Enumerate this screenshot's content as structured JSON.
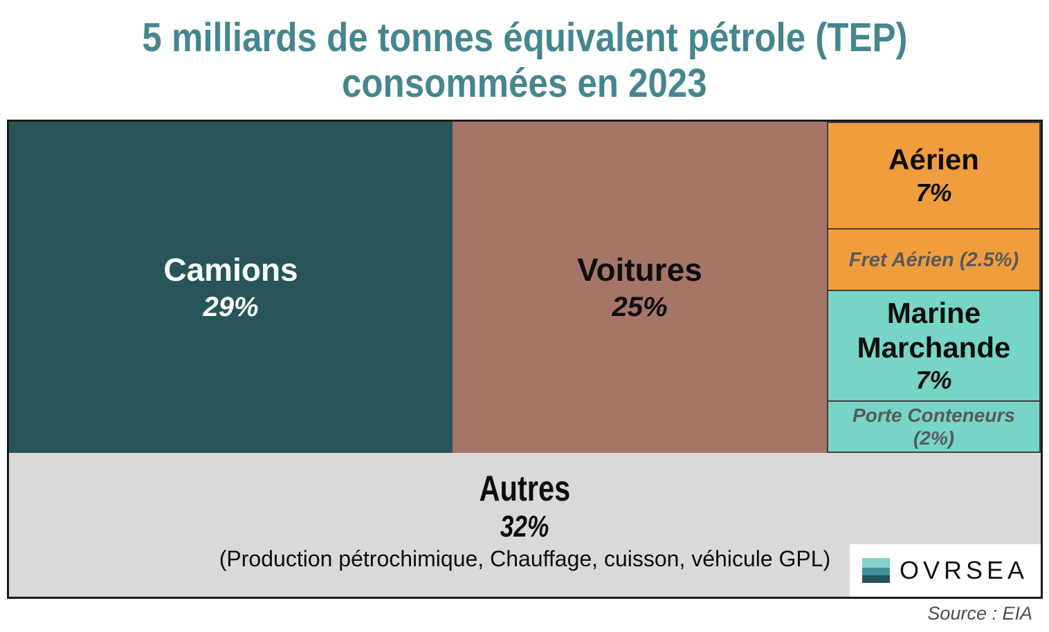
{
  "title": {
    "line1": "5 milliards de tonnes équivalent pétrole (TEP)",
    "line2": "consommées en 2023"
  },
  "chart_data": {
    "type": "treemap",
    "title": "5 milliards de tonnes équivalent pétrole (TEP) consommées en 2023",
    "unit": "% of 5 billion tonnes oil equivalent consumed in 2023",
    "items": [
      {
        "label": "Camions",
        "value_pct": 29,
        "color": "#275559",
        "text_color": "#ffffff"
      },
      {
        "label": "Voitures",
        "value_pct": 25,
        "color": "#A57568",
        "text_color": "#0d0d0d"
      },
      {
        "label": "Aérien",
        "value_pct": 7,
        "color": "#F09D3E",
        "text_color": "#0d0d0d",
        "sub_segment": {
          "label": "Fret Aérien",
          "value_pct": 2.5
        }
      },
      {
        "label": "Marine Marchande",
        "value_pct": 7,
        "color": "#76D5C7",
        "text_color": "#0d0d0d",
        "sub_segment": {
          "label": "Porte Conteneurs",
          "value_pct": 2
        }
      },
      {
        "label": "Autres",
        "value_pct": 32,
        "color": "#D9D9D9",
        "text_color": "#0d0d0d",
        "note": "(Production pétrochimique, Chauffage, cuisson, véhicule GPL)"
      }
    ],
    "source": "Source : EIA",
    "legend_position": "none",
    "grid": false
  },
  "blocks": {
    "camions": {
      "label": "Camions",
      "pct": "29%"
    },
    "voitures": {
      "label": "Voitures",
      "pct": "25%"
    },
    "aerien": {
      "label": "Aérien",
      "pct": "7%"
    },
    "fret": {
      "label": "Fret Aérien (2.5%)"
    },
    "marine": {
      "label": "Marine Marchande",
      "pct": "7%"
    },
    "porte": {
      "line1": "Porte Conteneurs",
      "line2": "(2%)"
    },
    "autres": {
      "label": "Autres",
      "pct": "32%",
      "note": "(Production pétrochimique, Chauffage, cuisson, véhicule GPL)"
    }
  },
  "logo": {
    "text": "OVRSEA"
  },
  "footer": {
    "source": "Source : EIA"
  },
  "colors": {
    "title": "#46868E",
    "camions": "#275559",
    "voitures": "#A57568",
    "aerien": "#F09D3E",
    "marine": "#76D5C7",
    "autres": "#D9D9D9",
    "sub_text": "#595959",
    "border_outer": "#1a1a1a",
    "border_inner": "#3f3f3f"
  }
}
